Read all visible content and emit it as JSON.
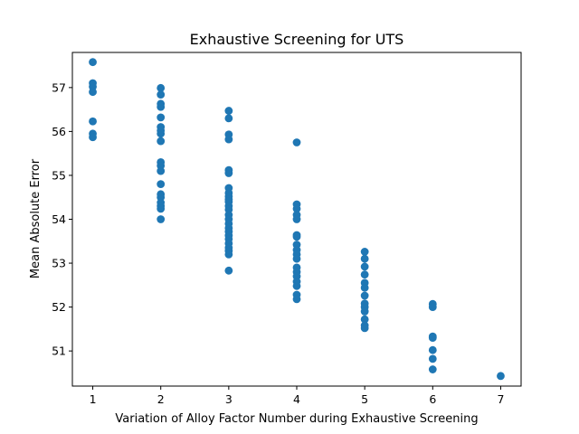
{
  "chart_data": {
    "type": "scatter",
    "title": "Exhaustive Screening for UTS",
    "xlabel": "Variation of Alloy Factor Number during Exhaustive Screening",
    "ylabel": "Mean Absolute Error",
    "xlim": [
      0.7,
      7.3
    ],
    "ylim": [
      50.2,
      57.8
    ],
    "xticks": [
      1,
      2,
      3,
      4,
      5,
      6,
      7
    ],
    "yticks": [
      51,
      52,
      53,
      54,
      55,
      56,
      57
    ],
    "grid": false,
    "color": "#1f77b4",
    "points": [
      [
        1,
        57.58
      ],
      [
        1,
        57.1
      ],
      [
        1,
        57.02
      ],
      [
        1,
        56.9
      ],
      [
        1,
        56.23
      ],
      [
        1,
        55.95
      ],
      [
        1,
        55.87
      ],
      [
        2,
        56.99
      ],
      [
        2,
        56.84
      ],
      [
        2,
        56.63
      ],
      [
        2,
        56.56
      ],
      [
        2,
        56.32
      ],
      [
        2,
        56.1
      ],
      [
        2,
        56.02
      ],
      [
        2,
        55.95
      ],
      [
        2,
        55.78
      ],
      [
        2,
        55.3
      ],
      [
        2,
        55.22
      ],
      [
        2,
        55.1
      ],
      [
        2,
        54.8
      ],
      [
        2,
        54.57
      ],
      [
        2,
        54.5
      ],
      [
        2,
        54.38
      ],
      [
        2,
        54.3
      ],
      [
        2,
        54.24
      ],
      [
        2,
        54.0
      ],
      [
        3,
        56.47
      ],
      [
        3,
        56.3
      ],
      [
        3,
        55.93
      ],
      [
        3,
        55.82
      ],
      [
        3,
        55.12
      ],
      [
        3,
        55.05
      ],
      [
        3,
        54.71
      ],
      [
        3,
        54.6
      ],
      [
        3,
        54.52
      ],
      [
        3,
        54.45
      ],
      [
        3,
        54.4
      ],
      [
        3,
        54.3
      ],
      [
        3,
        54.22
      ],
      [
        3,
        54.1
      ],
      [
        3,
        54.0
      ],
      [
        3,
        53.9
      ],
      [
        3,
        53.8
      ],
      [
        3,
        53.72
      ],
      [
        3,
        53.63
      ],
      [
        3,
        53.55
      ],
      [
        3,
        53.45
      ],
      [
        3,
        53.35
      ],
      [
        3,
        53.28
      ],
      [
        3,
        53.2
      ],
      [
        3,
        52.83
      ],
      [
        4,
        55.75
      ],
      [
        4,
        54.34
      ],
      [
        4,
        54.24
      ],
      [
        4,
        54.1
      ],
      [
        4,
        54.0
      ],
      [
        4,
        53.64
      ],
      [
        4,
        53.6
      ],
      [
        4,
        53.42
      ],
      [
        4,
        53.3
      ],
      [
        4,
        53.2
      ],
      [
        4,
        53.1
      ],
      [
        4,
        52.9
      ],
      [
        4,
        52.8
      ],
      [
        4,
        52.7
      ],
      [
        4,
        52.58
      ],
      [
        4,
        52.48
      ],
      [
        4,
        52.28
      ],
      [
        4,
        52.18
      ],
      [
        5,
        53.26
      ],
      [
        5,
        53.1
      ],
      [
        5,
        52.92
      ],
      [
        5,
        52.74
      ],
      [
        5,
        52.55
      ],
      [
        5,
        52.44
      ],
      [
        5,
        52.26
      ],
      [
        5,
        52.08
      ],
      [
        5,
        52.0
      ],
      [
        5,
        51.9
      ],
      [
        5,
        51.72
      ],
      [
        5,
        51.58
      ],
      [
        5,
        51.52
      ],
      [
        6,
        52.07
      ],
      [
        6,
        52.0
      ],
      [
        6,
        51.33
      ],
      [
        6,
        51.3
      ],
      [
        6,
        51.02
      ],
      [
        6,
        50.82
      ],
      [
        6,
        50.58
      ],
      [
        7,
        50.43
      ]
    ]
  }
}
